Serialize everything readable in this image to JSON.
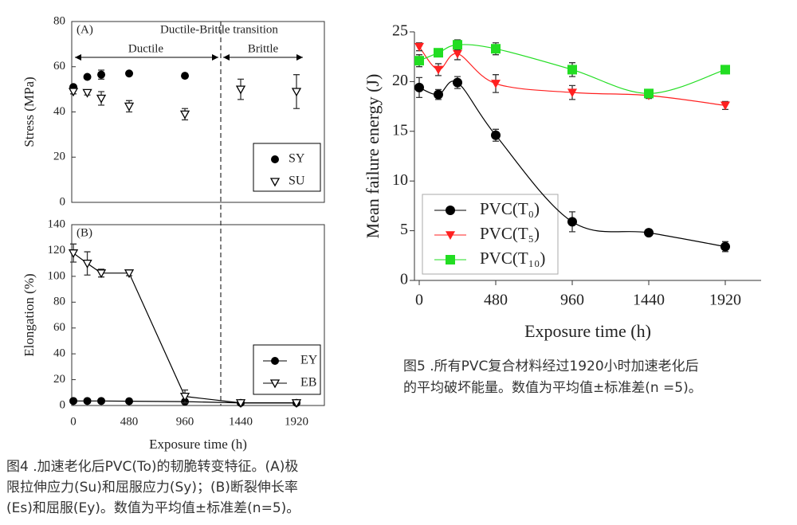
{
  "chart_data": [
    {
      "type": "scatter",
      "panel_label": "(A)",
      "annotation": "Ductile-Brittle transition",
      "region_labels": [
        "Ductile",
        "Brittle"
      ],
      "y_label": "Stress (MPa)",
      "x": [
        0,
        120,
        240,
        480,
        960,
        1440,
        1920
      ],
      "xlim": [
        -14,
        2160
      ],
      "ylim": [
        0,
        80
      ],
      "yticks": [
        0,
        20,
        40,
        60,
        80
      ],
      "series": [
        {
          "name": "SY",
          "color": "#000000",
          "marker": "filled-circle",
          "line": "none",
          "values": [
            51,
            55.5,
            56.5,
            57,
            56,
            null,
            null
          ],
          "errors": [
            null,
            null,
            2,
            null,
            null,
            null,
            null
          ]
        },
        {
          "name": "SU",
          "color": "#000000",
          "marker": "open-triangle",
          "line": "none",
          "values": [
            49,
            48.5,
            46,
            42.5,
            39,
            50,
            49
          ],
          "errors": [
            1,
            1,
            3,
            2.5,
            2.5,
            4.5,
            7.5
          ]
        }
      ]
    },
    {
      "type": "line",
      "panel_label": "(B)",
      "y_label": "Elongation (%)",
      "x_label": "Exposure time (h)",
      "x": [
        0,
        120,
        240,
        480,
        960,
        1440,
        1920
      ],
      "xlim": [
        -14,
        2160
      ],
      "xticks": [
        0,
        480,
        960,
        1440,
        1920
      ],
      "ylim": [
        0,
        140
      ],
      "yticks": [
        0,
        20,
        40,
        60,
        80,
        100,
        120,
        140
      ],
      "series": [
        {
          "name": "EY",
          "color": "#000000",
          "marker": "filled-circle",
          "line": "straight",
          "values": [
            3.5,
            3.5,
            3.5,
            3.3,
            3,
            2,
            2
          ],
          "errors": [
            null,
            null,
            null,
            null,
            null,
            null,
            null
          ]
        },
        {
          "name": "EB",
          "color": "#000000",
          "marker": "open-triangle",
          "line": "straight",
          "values": [
            118,
            110,
            102.5,
            102.5,
            7,
            2,
            2
          ],
          "errors": [
            7,
            9,
            3,
            2,
            5,
            null,
            null
          ]
        }
      ]
    },
    {
      "type": "line",
      "y_label": "Mean failure energy (J)",
      "x_label": "Exposure time (h)",
      "x": [
        0,
        120,
        240,
        480,
        960,
        1440,
        1920
      ],
      "xlim": [
        -30,
        2145
      ],
      "xticks": [
        0,
        480,
        960,
        1440,
        1920
      ],
      "ylim": [
        0,
        25
      ],
      "yticks": [
        0,
        5,
        10,
        15,
        20,
        25
      ],
      "series": [
        {
          "name": "PVC(T₀)",
          "color": "#000000",
          "marker": "filled-circle",
          "line": "smooth",
          "values": [
            19.4,
            18.7,
            19.9,
            14.6,
            5.9,
            4.8,
            3.4
          ],
          "errors": [
            1,
            0.5,
            0.6,
            0.6,
            1,
            null,
            0.5
          ]
        },
        {
          "name": "PVC(T₅)",
          "color": "#ff2020",
          "marker": "filled-triangle-down",
          "line": "smooth",
          "values": [
            23.5,
            21.2,
            22.8,
            19.8,
            18.9,
            18.6,
            17.6
          ],
          "errors": [
            0.4,
            0.6,
            0.6,
            0.9,
            0.7,
            0.3,
            0.4
          ]
        },
        {
          "name": "PVC(T₁₀)",
          "color": "#22dd22",
          "marker": "filled-square",
          "line": "smooth",
          "values": [
            22.1,
            22.9,
            23.7,
            23.3,
            21.2,
            18.8,
            21.2
          ],
          "errors": [
            0.6,
            0.4,
            0.5,
            0.6,
            0.7,
            0.3,
            0.4
          ]
        }
      ]
    }
  ],
  "captions": [
    [
      "图4 .加速老化后PVC(To)的韧脆转变特征。(A)极",
      "限拉伸应力(Su)和屈服应力(Sy)；(B)断裂伸长率",
      "(Es)和屈服(Ey)。数值为平均值±标准差(n=5)。"
    ],
    [
      "图5 .所有PVC复合材料经过1920小时加速老化后",
      "的平均破坏能量。数值为平均值±标准差(n =5)。"
    ]
  ]
}
